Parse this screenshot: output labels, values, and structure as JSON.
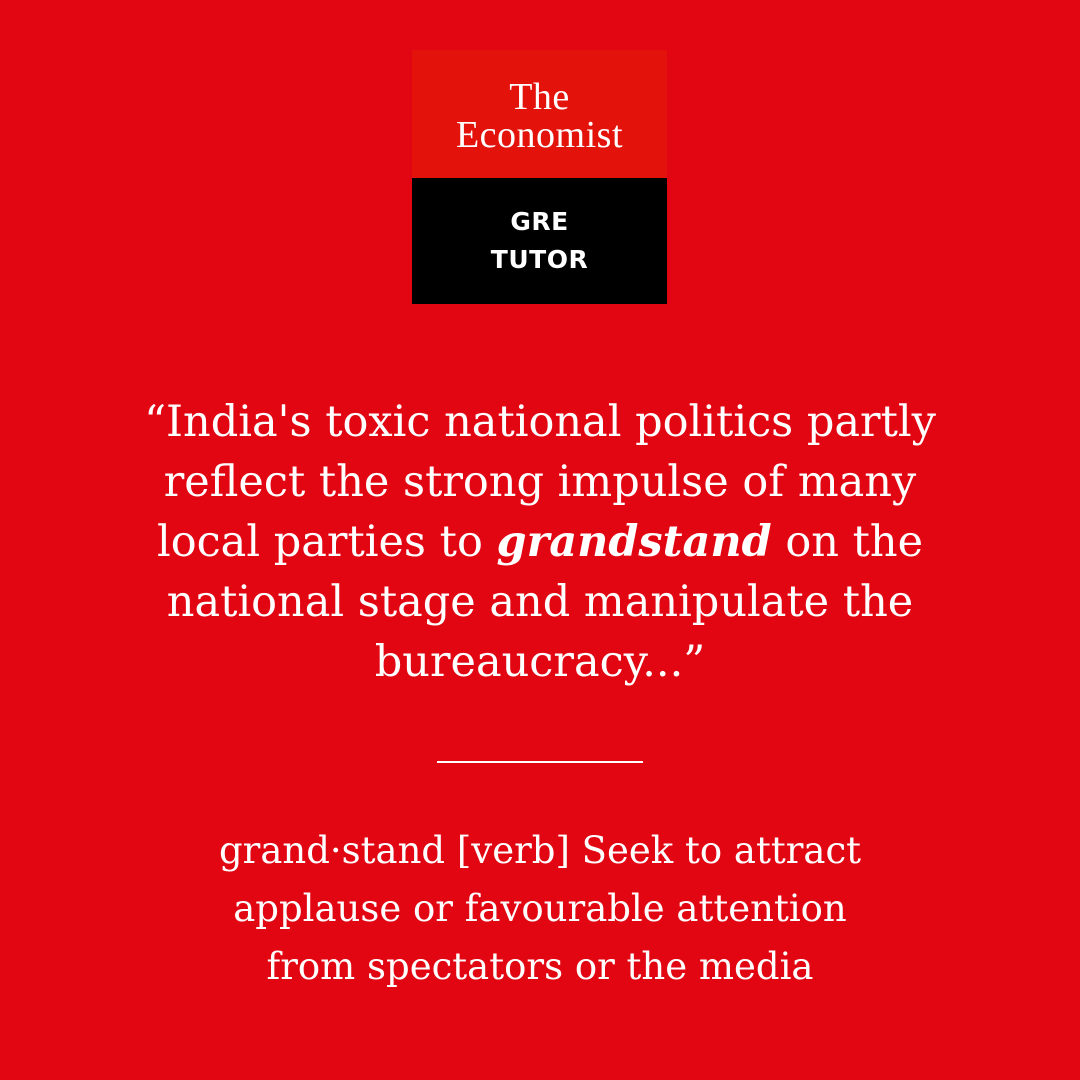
{
  "logo": {
    "brand_line1": "The",
    "brand_line2": "Economist",
    "product_line1": "GRE",
    "product_line2": "TUTOR"
  },
  "quote": {
    "line1": "“India's toxic national politics partly",
    "line2": "reflect the strong impulse of many",
    "line3_before": "local parties to ",
    "line3_word": "grandstand",
    "line3_after": " on the",
    "line4": "national stage and manipulate the",
    "line5": "bureaucracy...”"
  },
  "definition": {
    "line1": "grand·stand [verb] Seek to attract",
    "line2": "applause or favourable attention",
    "line3": "from spectators or the media"
  },
  "colors": {
    "background": "#e20613",
    "logo_red": "#e3120b",
    "logo_black": "#000000",
    "text": "#ffffff"
  }
}
